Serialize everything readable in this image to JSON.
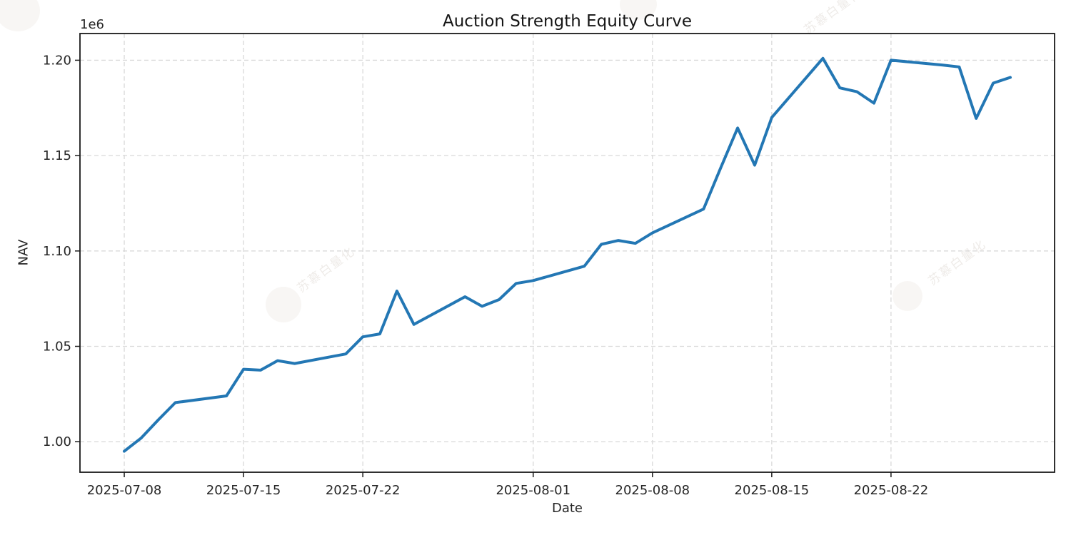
{
  "figure": {
    "title": "Auction Strength Equity Curve",
    "offset_label": "1e6"
  },
  "watermark": {
    "text": "苏慕白量化"
  },
  "chart_data": {
    "type": "line",
    "title": "Auction Strength Equity Curve",
    "xlabel": "Date",
    "ylabel": "NAV",
    "grid": true,
    "grid_style": "dashed",
    "line_color": "#2377b4",
    "grid_color": "#d9d9d9",
    "spine_color": "#1a1a1a",
    "tick_text_color": "#262626",
    "ylim": [
      984000,
      1214000
    ],
    "xlim_days": [
      -2.6,
      54.6
    ],
    "ytick_values": [
      1000000,
      1050000,
      1100000,
      1150000,
      1200000
    ],
    "ytick_labels": [
      "1.00",
      "1.05",
      "1.10",
      "1.15",
      "1.20"
    ],
    "xtick_dates": [
      "2025-07-08",
      "2025-07-15",
      "2025-07-22",
      "2025-08-01",
      "2025-08-08",
      "2025-08-15",
      "2025-08-22"
    ],
    "x": [
      "2025-07-08",
      "2025-07-09",
      "2025-07-10",
      "2025-07-11",
      "2025-07-14",
      "2025-07-15",
      "2025-07-16",
      "2025-07-17",
      "2025-07-18",
      "2025-07-21",
      "2025-07-22",
      "2025-07-23",
      "2025-07-24",
      "2025-07-25",
      "2025-07-28",
      "2025-07-29",
      "2025-07-30",
      "2025-07-31",
      "2025-08-01",
      "2025-08-04",
      "2025-08-05",
      "2025-08-06",
      "2025-08-07",
      "2025-08-08",
      "2025-08-11",
      "2025-08-12",
      "2025-08-13",
      "2025-08-14",
      "2025-08-15",
      "2025-08-18",
      "2025-08-19",
      "2025-08-20",
      "2025-08-21",
      "2025-08-22",
      "2025-08-25",
      "2025-08-26",
      "2025-08-27",
      "2025-08-28",
      "2025-08-29"
    ],
    "values": [
      995000,
      1002000,
      1011500,
      1020500,
      1024000,
      1038000,
      1037500,
      1042500,
      1041000,
      1046000,
      1055000,
      1056500,
      1079000,
      1061500,
      1076000,
      1071000,
      1074500,
      1083000,
      1084500,
      1092000,
      1103500,
      1105500,
      1104000,
      1109500,
      1122000,
      1143500,
      1164500,
      1145000,
      1170000,
      1201000,
      1185500,
      1183500,
      1177500,
      1200000,
      1197500,
      1196500,
      1169500,
      1188000,
      1191000
    ]
  }
}
